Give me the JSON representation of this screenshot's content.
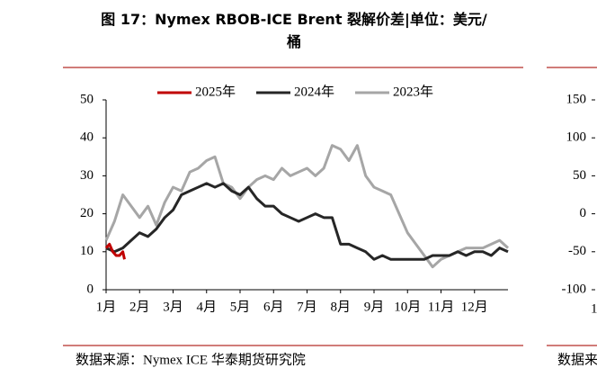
{
  "charts": [
    {
      "type": "line",
      "title": "图 17：Nymex RBOB-ICE Brent 裂解价差|单位：美元/桶",
      "source": "数据来源：Nymex ICE 华泰期货研究院",
      "xlim": [
        1,
        13
      ],
      "xticks": [
        {
          "value": 1,
          "label": "1月"
        },
        {
          "value": 2,
          "label": "2月"
        },
        {
          "value": 3,
          "label": "3月"
        },
        {
          "value": 4,
          "label": "4月"
        },
        {
          "value": 5,
          "label": "5月"
        },
        {
          "value": 6,
          "label": "6月"
        },
        {
          "value": 7,
          "label": "7月"
        },
        {
          "value": 8,
          "label": "8月"
        },
        {
          "value": 9,
          "label": "9月"
        },
        {
          "value": 10,
          "label": "10月"
        },
        {
          "value": 11,
          "label": "11月"
        },
        {
          "value": 12,
          "label": "12月"
        }
      ],
      "ylim": [
        0,
        50
      ],
      "yticks": [
        0,
        10,
        20,
        30,
        40,
        50
      ],
      "legend": "top",
      "series": [
        {
          "name": "2025年",
          "color": "#c00000",
          "x": [
            1,
            1.1,
            1.2,
            1.3,
            1.4,
            1.5,
            1.55
          ],
          "values": [
            11,
            12,
            10,
            9,
            9,
            10,
            8
          ]
        },
        {
          "name": "2024年",
          "color": "#262626",
          "x": [
            1,
            1.25,
            1.5,
            1.75,
            2,
            2.25,
            2.5,
            2.75,
            3,
            3.25,
            3.5,
            3.75,
            4,
            4.25,
            4.5,
            4.75,
            5,
            5.25,
            5.5,
            5.75,
            6,
            6.25,
            6.5,
            6.75,
            7,
            7.25,
            7.5,
            7.75,
            8,
            8.25,
            8.5,
            8.75,
            9,
            9.25,
            9.5,
            9.75,
            10,
            10.25,
            10.5,
            10.75,
            11,
            11.25,
            11.5,
            11.75,
            12,
            12.25,
            12.5,
            12.75,
            13
          ],
          "values": [
            11,
            10,
            11,
            13,
            15,
            14,
            16,
            19,
            21,
            25,
            26,
            27,
            28,
            27,
            28,
            26,
            25,
            27,
            24,
            22,
            22,
            20,
            19,
            18,
            19,
            20,
            19,
            19,
            12,
            12,
            11,
            10,
            8,
            9,
            8,
            8,
            8,
            8,
            8,
            9,
            9,
            9,
            10,
            9,
            10,
            10,
            9,
            11,
            10
          ]
        },
        {
          "name": "2023年",
          "color": "#a6a6a6",
          "x": [
            1,
            1.25,
            1.5,
            1.75,
            2,
            2.25,
            2.5,
            2.75,
            3,
            3.25,
            3.5,
            3.75,
            4,
            4.25,
            4.5,
            4.75,
            5,
            5.25,
            5.5,
            5.75,
            6,
            6.25,
            6.5,
            6.75,
            7,
            7.25,
            7.5,
            7.75,
            8,
            8.25,
            8.5,
            8.75,
            9,
            9.25,
            9.5,
            9.75,
            10,
            10.25,
            10.5,
            10.75,
            11,
            11.25,
            11.5,
            11.75,
            12,
            12.25,
            12.5,
            12.75,
            13
          ],
          "values": [
            13,
            18,
            25,
            22,
            19,
            22,
            17,
            23,
            27,
            26,
            31,
            32,
            34,
            35,
            28,
            27,
            24,
            27,
            29,
            30,
            29,
            32,
            30,
            31,
            32,
            30,
            32,
            38,
            37,
            34,
            38,
            30,
            27,
            26,
            25,
            20,
            15,
            12,
            9,
            6,
            8,
            9,
            10,
            11,
            11,
            11,
            12,
            13,
            11
          ]
        }
      ]
    },
    {
      "type": "line",
      "source": "数据来",
      "xticks": [
        {
          "value": 1,
          "label": "1"
        }
      ],
      "ylim": [
        -100,
        150
      ],
      "yticks": [
        -100,
        -50,
        0,
        50,
        100,
        150
      ]
    }
  ]
}
